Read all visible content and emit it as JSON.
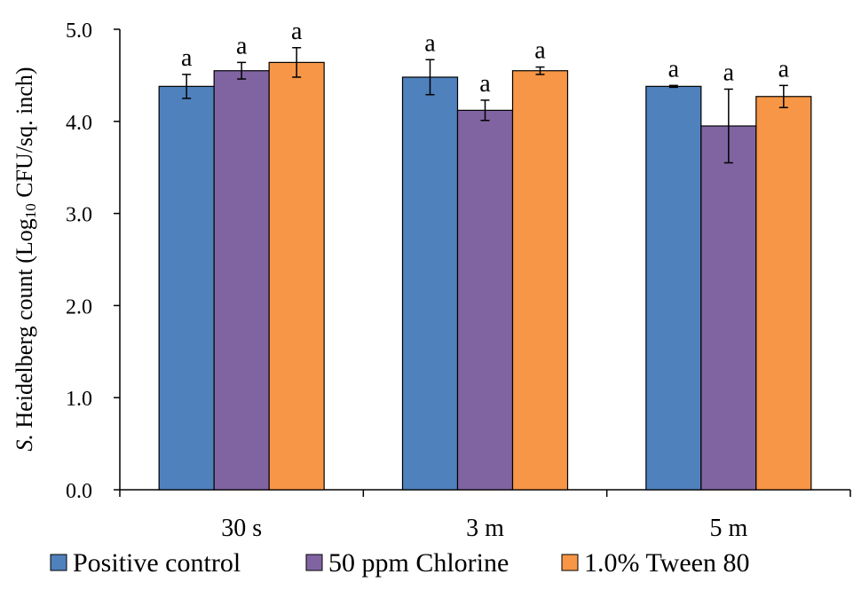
{
  "chart_data": {
    "type": "bar",
    "title": "",
    "xlabel": "",
    "ylabel": {
      "italic_part": "S.",
      "main": " Heidelberg count (Log",
      "subscript": "10",
      "suffix": " CFU/sq. inch)"
    },
    "ylim": [
      0,
      5
    ],
    "yticks": [
      "0.0",
      "1.0",
      "2.0",
      "3.0",
      "4.0",
      "5.0"
    ],
    "categories": [
      "30 s",
      "3 m",
      "5 m"
    ],
    "series": [
      {
        "name": "Positive control",
        "color": "#4f81bd",
        "values": [
          4.38,
          4.48,
          4.38
        ],
        "errors": [
          0.13,
          0.19,
          0.01
        ],
        "labels": [
          "a",
          "a",
          "a"
        ]
      },
      {
        "name": "50 ppm Chlorine",
        "color": "#8064a2",
        "values": [
          4.55,
          4.12,
          3.95
        ],
        "errors": [
          0.09,
          0.11,
          0.4
        ],
        "labels": [
          "a",
          "a",
          "a"
        ]
      },
      {
        "name": "1.0% Tween 80",
        "color": "#f79646",
        "values": [
          4.64,
          4.55,
          4.27
        ],
        "errors": [
          0.16,
          0.04,
          0.12
        ],
        "labels": [
          "a",
          "a",
          "a"
        ]
      }
    ],
    "legend_position": "bottom"
  }
}
